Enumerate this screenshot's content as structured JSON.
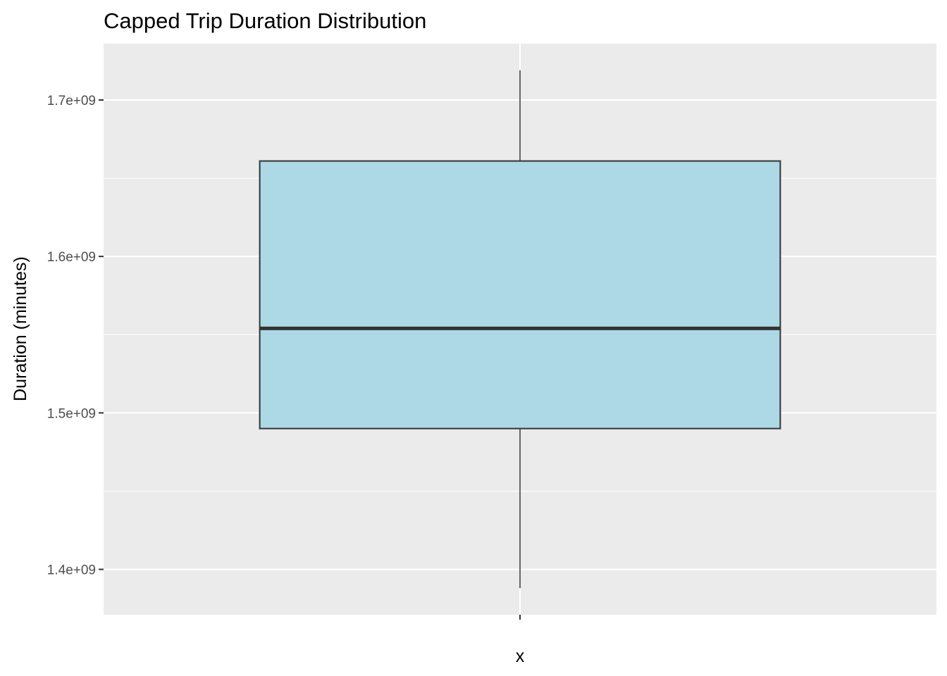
{
  "chart_data": {
    "type": "boxplot",
    "title": "Capped Trip Duration Distribution",
    "xlabel": "",
    "ylabel": "Duration (minutes)",
    "categories": [
      "x"
    ],
    "boxes": [
      {
        "category": "x",
        "whisker_low": 1388000000,
        "q1": 1490000000,
        "median": 1554000000,
        "q3": 1661000000,
        "whisker_high": 1719000000
      }
    ],
    "y_ticks": [
      {
        "value": 1400000000,
        "label": "1.4e+09"
      },
      {
        "value": 1500000000,
        "label": "1.5e+09"
      },
      {
        "value": 1600000000,
        "label": "1.6e+09"
      },
      {
        "value": 1700000000,
        "label": "1.7e+09"
      }
    ],
    "y_minor_ticks": [
      1450000000,
      1550000000,
      1650000000
    ],
    "ylim": [
      1371000000,
      1736000000
    ],
    "grid": true,
    "colors": {
      "panel_background": "#ebebeb",
      "grid_line": "#ffffff",
      "box_fill": "#add8e6",
      "box_outline": "#333333"
    }
  }
}
